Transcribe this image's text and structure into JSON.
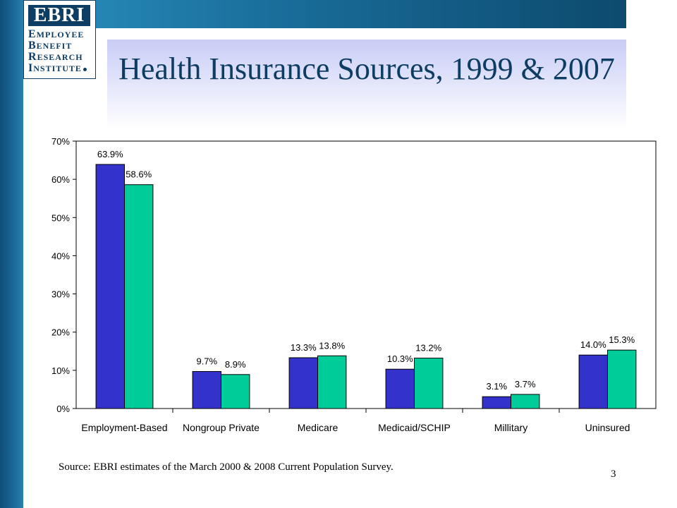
{
  "logo": {
    "name": "EBRI",
    "lines": [
      {
        "cap": "E",
        "rest": "mployee"
      },
      {
        "cap": "B",
        "rest": "enefit"
      },
      {
        "cap": "R",
        "rest": "esearch"
      },
      {
        "cap": "I",
        "rest": "nstitute"
      }
    ]
  },
  "slide": {
    "title": "Health Insurance Sources, 1999 & 2007",
    "source": "Source: EBRI estimates of the March 2000 & 2008 Current Population Survey.",
    "page_number": "3"
  },
  "chart_data": {
    "type": "bar",
    "title": "",
    "xlabel": "",
    "ylabel": "",
    "categories": [
      "Employment-Based",
      "Nongroup Private",
      "Medicare",
      "Medicaid/SCHIP",
      "Millitary",
      "Uninsured"
    ],
    "series": [
      {
        "values": [
          63.9,
          9.7,
          13.3,
          10.3,
          3.1,
          14.0
        ],
        "labels": [
          "63.9%",
          "9.7%",
          "13.3%",
          "10.3%",
          "3.1%",
          "14.0%"
        ],
        "color": "#3333cc"
      },
      {
        "values": [
          58.6,
          8.9,
          13.8,
          13.2,
          3.7,
          15.3
        ],
        "labels": [
          "58.6%",
          "8.9%",
          "13.8%",
          "13.2%",
          "3.7%",
          "15.3%"
        ],
        "color": "#00cc99"
      }
    ],
    "ylim": [
      0,
      70
    ],
    "yticks": [
      0,
      10,
      20,
      30,
      40,
      50,
      60,
      70
    ],
    "ytick_labels": [
      "0%",
      "10%",
      "20%",
      "30%",
      "40%",
      "50%",
      "60%",
      "70%"
    ],
    "grid": false,
    "legend": "none"
  }
}
